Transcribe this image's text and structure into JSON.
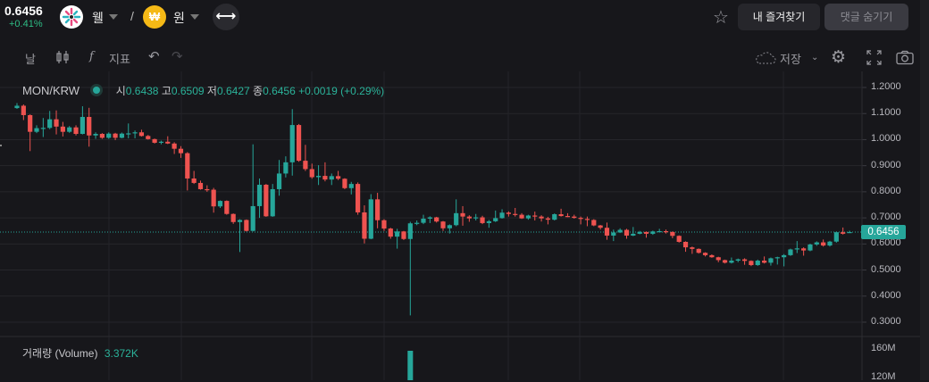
{
  "header": {
    "last_price": "0.6456",
    "change_pct": "+0.41%",
    "base_symbol": "웰",
    "separator": "/",
    "quote_symbol": "원",
    "quote_coin_glyph": "₩",
    "swap_icon": "swap-arrows-icon",
    "favorites_label": "내 즐겨찾기",
    "hide_comments_label": "댓글 숨기기"
  },
  "toolbar": {
    "interval_label": "날",
    "indicators_label": "지표",
    "fx_glyph": "f",
    "save_label": "저장"
  },
  "legend": {
    "pair": "MON/KRW",
    "open_label": "시",
    "open": "0.6438",
    "high_label": "고",
    "high": "0.6509",
    "low_label": "저",
    "low": "0.6427",
    "close_label": "종",
    "close": "0.6456",
    "change": "+0.0019 (+0.29%)"
  },
  "volume_legend": {
    "label": "거래량 (Volume)",
    "value": "3.372K"
  },
  "colors": {
    "up": "#26a69a",
    "down": "#ef5350",
    "background": "#17171b",
    "change_positive": "#2ebd85"
  },
  "chart_data": {
    "type": "candlestick",
    "title": "MON/KRW",
    "ylim": [
      0.3,
      1.2
    ],
    "y_ticks": [
      "1.2000",
      "1.1000",
      "1.0000",
      "0.9000",
      "0.8000",
      "0.7000",
      "0.6000",
      "0.5000",
      "0.4000",
      "0.3000"
    ],
    "y_tick_values": [
      1.2,
      1.1,
      1.0,
      0.9,
      0.8,
      0.7,
      0.6,
      0.5,
      0.4,
      0.3
    ],
    "last_price_label": "0.6456",
    "last_price": 0.6456,
    "volume_ticks": [
      "160M",
      "120M"
    ],
    "grid": true,
    "ohlc": [
      [
        1.121,
        1.14,
        1.118,
        1.13
      ],
      [
        1.13,
        1.135,
        1.075,
        1.094
      ],
      [
        1.094,
        1.097,
        0.956,
        1.03
      ],
      [
        1.03,
        1.055,
        1.025,
        1.044
      ],
      [
        1.044,
        1.083,
        1.01,
        1.045
      ],
      [
        1.045,
        1.11,
        1.04,
        1.078
      ],
      [
        1.078,
        1.112,
        1.02,
        1.05
      ],
      [
        1.05,
        1.068,
        1.012,
        1.03
      ],
      [
        1.03,
        1.052,
        1.026,
        1.047
      ],
      [
        1.047,
        1.055,
        1.016,
        1.022
      ],
      [
        1.022,
        1.128,
        1.02,
        1.087
      ],
      [
        1.087,
        1.122,
        0.973,
        1.016
      ],
      [
        1.016,
        1.028,
        1.003,
        1.022
      ],
      [
        1.022,
        1.025,
        1.003,
        1.007
      ],
      [
        1.007,
        1.028,
        1.003,
        1.023
      ],
      [
        1.023,
        1.026,
        0.998,
        1.007
      ],
      [
        1.007,
        1.027,
        1.005,
        1.023
      ],
      [
        1.023,
        1.062,
        1.005,
        1.024
      ],
      [
        1.024,
        1.035,
        1.005,
        1.028
      ],
      [
        1.028,
        1.038,
        1.012,
        1.014
      ],
      [
        1.014,
        1.018,
        1.0,
        1.002
      ],
      [
        1.002,
        1.004,
        0.985,
        0.988
      ],
      [
        0.988,
        0.996,
        0.982,
        0.992
      ],
      [
        0.992,
        1.013,
        0.983,
        0.985
      ],
      [
        0.985,
        0.99,
        0.945,
        0.965
      ],
      [
        0.965,
        0.975,
        0.93,
        0.948
      ],
      [
        0.948,
        0.952,
        0.805,
        0.851
      ],
      [
        0.851,
        0.88,
        0.83,
        0.834
      ],
      [
        0.834,
        0.843,
        0.808,
        0.81
      ],
      [
        0.81,
        0.825,
        0.8,
        0.808
      ],
      [
        0.808,
        0.815,
        0.72,
        0.744
      ],
      [
        0.744,
        0.767,
        0.738,
        0.765
      ],
      [
        0.765,
        0.767,
        0.712,
        0.715
      ],
      [
        0.715,
        0.717,
        0.677,
        0.684
      ],
      [
        0.684,
        0.695,
        0.569,
        0.692
      ],
      [
        0.692,
        0.694,
        0.648,
        0.65
      ],
      [
        0.65,
        0.982,
        0.648,
        0.745
      ],
      [
        0.745,
        0.851,
        0.7,
        0.827
      ],
      [
        0.827,
        0.83,
        0.704,
        0.706
      ],
      [
        0.706,
        0.83,
        0.704,
        0.81
      ],
      [
        0.81,
        0.922,
        0.785,
        0.87
      ],
      [
        0.87,
        0.936,
        0.855,
        0.913
      ],
      [
        0.913,
        1.117,
        0.862,
        1.056
      ],
      [
        1.056,
        1.06,
        0.915,
        0.919
      ],
      [
        0.919,
        0.98,
        0.88,
        0.887
      ],
      [
        0.887,
        0.908,
        0.85,
        0.856
      ],
      [
        0.856,
        0.902,
        0.826,
        0.861
      ],
      [
        0.861,
        0.913,
        0.84,
        0.847
      ],
      [
        0.847,
        0.87,
        0.826,
        0.86
      ],
      [
        0.86,
        0.88,
        0.845,
        0.85
      ],
      [
        0.85,
        0.852,
        0.81,
        0.814
      ],
      [
        0.814,
        0.838,
        0.79,
        0.83
      ],
      [
        0.83,
        0.836,
        0.712,
        0.721
      ],
      [
        0.721,
        0.748,
        0.602,
        0.62
      ],
      [
        0.62,
        0.791,
        0.618,
        0.771
      ],
      [
        0.771,
        0.796,
        0.66,
        0.691
      ],
      [
        0.691,
        0.695,
        0.65,
        0.659
      ],
      [
        0.659,
        0.662,
        0.62,
        0.628
      ],
      [
        0.628,
        0.658,
        0.582,
        0.648
      ],
      [
        0.648,
        0.65,
        0.615,
        0.619
      ],
      [
        0.619,
        0.685,
        0.326,
        0.679
      ],
      [
        0.679,
        0.69,
        0.672,
        0.681
      ],
      [
        0.681,
        0.712,
        0.676,
        0.697
      ],
      [
        0.697,
        0.706,
        0.68,
        0.702
      ],
      [
        0.702,
        0.704,
        0.682,
        0.686
      ],
      [
        0.686,
        0.688,
        0.65,
        0.66
      ],
      [
        0.66,
        0.675,
        0.64,
        0.672
      ],
      [
        0.672,
        0.771,
        0.668,
        0.718
      ],
      [
        0.718,
        0.745,
        0.67,
        0.705
      ],
      [
        0.705,
        0.71,
        0.685,
        0.698
      ],
      [
        0.698,
        0.715,
        0.69,
        0.702
      ],
      [
        0.702,
        0.708,
        0.676,
        0.68
      ],
      [
        0.68,
        0.692,
        0.662,
        0.687
      ],
      [
        0.687,
        0.728,
        0.684,
        0.699
      ],
      [
        0.699,
        0.733,
        0.697,
        0.72
      ],
      [
        0.72,
        0.725,
        0.705,
        0.715
      ],
      [
        0.715,
        0.738,
        0.705,
        0.712
      ],
      [
        0.712,
        0.718,
        0.696,
        0.698
      ],
      [
        0.698,
        0.712,
        0.693,
        0.709
      ],
      [
        0.709,
        0.724,
        0.69,
        0.705
      ],
      [
        0.705,
        0.71,
        0.686,
        0.698
      ],
      [
        0.698,
        0.704,
        0.675,
        0.693
      ],
      [
        0.693,
        0.717,
        0.69,
        0.714
      ],
      [
        0.714,
        0.735,
        0.705,
        0.707
      ],
      [
        0.707,
        0.718,
        0.703,
        0.705
      ],
      [
        0.705,
        0.712,
        0.697,
        0.7
      ],
      [
        0.7,
        0.705,
        0.675,
        0.696
      ],
      [
        0.696,
        0.705,
        0.668,
        0.692
      ],
      [
        0.692,
        0.695,
        0.668,
        0.671
      ],
      [
        0.671,
        0.673,
        0.655,
        0.662
      ],
      [
        0.662,
        0.682,
        0.616,
        0.632
      ],
      [
        0.632,
        0.655,
        0.611,
        0.644
      ],
      [
        0.644,
        0.66,
        0.642,
        0.654
      ],
      [
        0.654,
        0.658,
        0.62,
        0.632
      ],
      [
        0.632,
        0.665,
        0.63,
        0.639
      ],
      [
        0.639,
        0.65,
        0.637,
        0.646
      ],
      [
        0.646,
        0.648,
        0.624,
        0.639
      ],
      [
        0.639,
        0.651,
        0.635,
        0.648
      ],
      [
        0.648,
        0.658,
        0.645,
        0.649
      ],
      [
        0.649,
        0.655,
        0.64,
        0.646
      ],
      [
        0.646,
        0.648,
        0.622,
        0.631
      ],
      [
        0.631,
        0.633,
        0.605,
        0.608
      ],
      [
        0.608,
        0.61,
        0.57,
        0.587
      ],
      [
        0.587,
        0.59,
        0.562,
        0.581
      ],
      [
        0.581,
        0.583,
        0.563,
        0.566
      ],
      [
        0.566,
        0.568,
        0.552,
        0.557
      ],
      [
        0.557,
        0.56,
        0.547,
        0.549
      ],
      [
        0.549,
        0.551,
        0.53,
        0.538
      ],
      [
        0.538,
        0.54,
        0.525,
        0.528
      ],
      [
        0.528,
        0.548,
        0.525,
        0.536
      ],
      [
        0.536,
        0.544,
        0.53,
        0.541
      ],
      [
        0.541,
        0.545,
        0.52,
        0.535
      ],
      [
        0.535,
        0.537,
        0.515,
        0.519
      ],
      [
        0.519,
        0.54,
        0.516,
        0.536
      ],
      [
        0.536,
        0.552,
        0.525,
        0.528
      ],
      [
        0.528,
        0.548,
        0.517,
        0.545
      ],
      [
        0.545,
        0.551,
        0.521,
        0.549
      ],
      [
        0.549,
        0.561,
        0.514,
        0.557
      ],
      [
        0.557,
        0.582,
        0.554,
        0.579
      ],
      [
        0.579,
        0.611,
        0.565,
        0.583
      ],
      [
        0.583,
        0.587,
        0.555,
        0.575
      ],
      [
        0.575,
        0.601,
        0.572,
        0.598
      ],
      [
        0.598,
        0.61,
        0.593,
        0.606
      ],
      [
        0.606,
        0.617,
        0.59,
        0.594
      ],
      [
        0.594,
        0.612,
        0.59,
        0.609
      ],
      [
        0.609,
        0.648,
        0.605,
        0.645
      ],
      [
        0.645,
        0.663,
        0.636,
        0.639
      ],
      [
        0.6438,
        0.6509,
        0.6427,
        0.6456
      ]
    ]
  }
}
